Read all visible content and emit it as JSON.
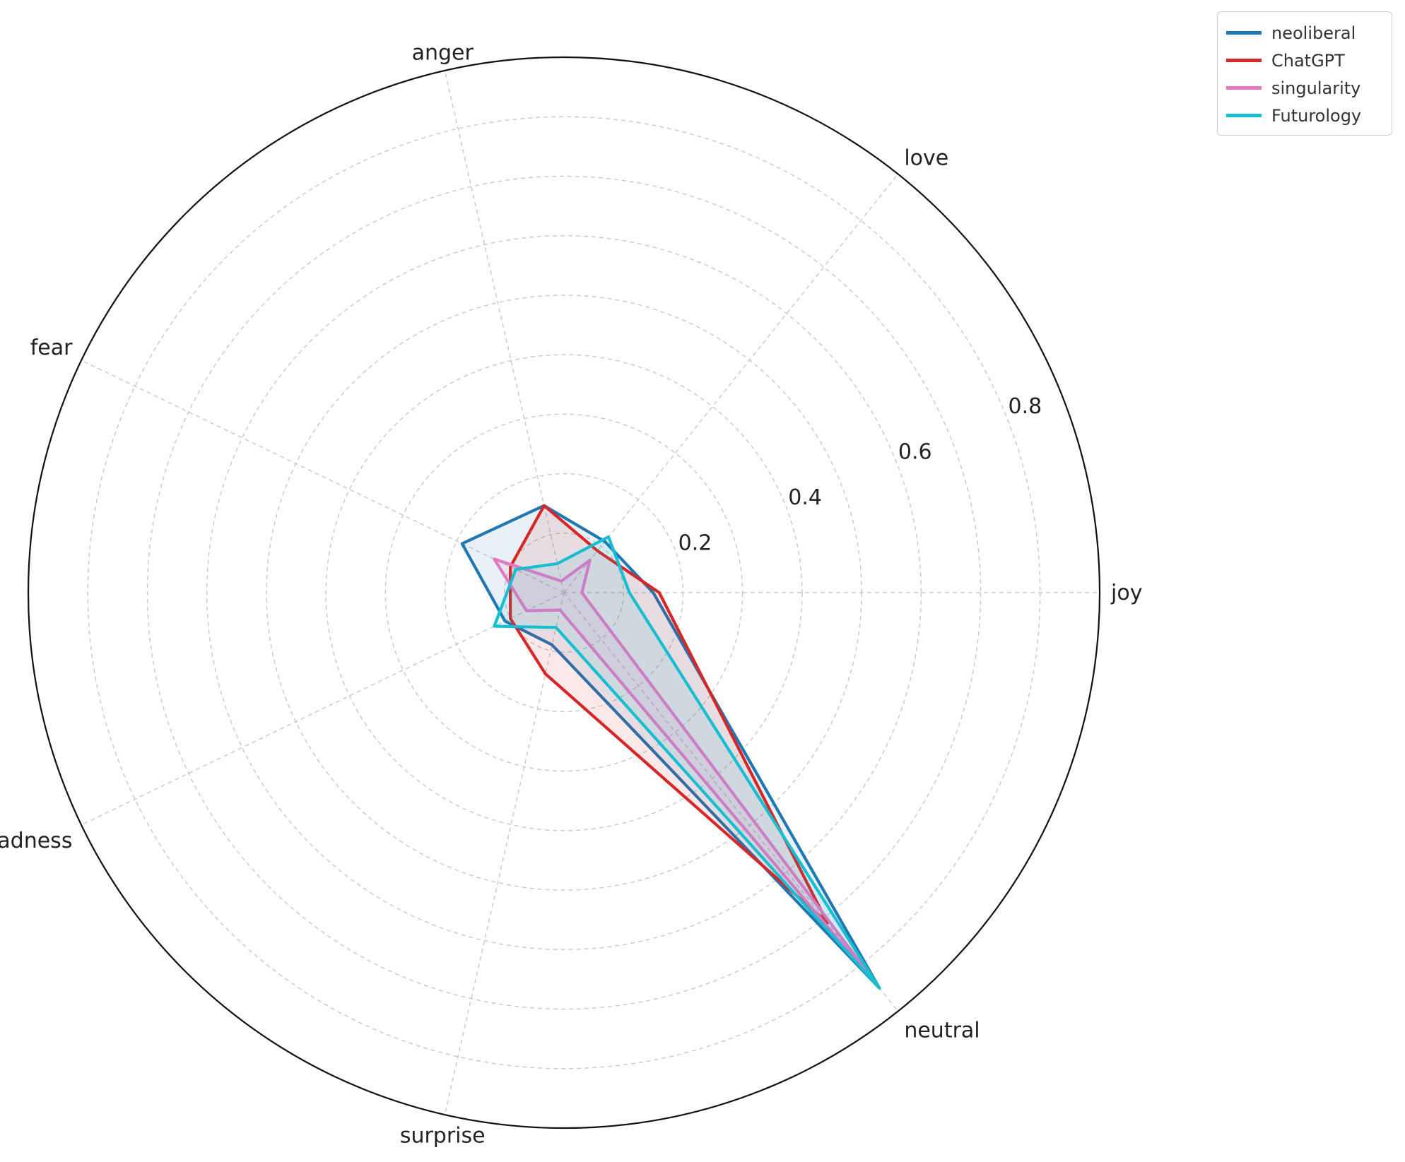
{
  "chart_data": {
    "type": "radar",
    "categories": [
      "joy",
      "love",
      "anger",
      "fear",
      "sadness",
      "surprise",
      "neutral"
    ],
    "rlim": [
      0,
      0.9
    ],
    "rticks": [
      0.2,
      0.4,
      0.6,
      0.8
    ],
    "rtick_labels": [
      "0.2",
      "0.4",
      "0.6",
      "0.8"
    ],
    "grid": true,
    "legend_position": "top-right",
    "series": [
      {
        "name": "neoliberal",
        "color": "#1f77b4",
        "values": [
          0.15,
          0.11,
          0.15,
          0.19,
          0.11,
          0.09,
          0.85
        ]
      },
      {
        "name": "ChatGPT",
        "color": "#d62728",
        "values": [
          0.16,
          0.09,
          0.15,
          0.1,
          0.1,
          0.14,
          0.71
        ]
      },
      {
        "name": "singularity",
        "color": "#e377c2",
        "values": [
          0.03,
          0.07,
          0.02,
          0.13,
          0.07,
          0.03,
          0.85
        ]
      },
      {
        "name": "Futurology",
        "color": "#17becf",
        "values": [
          0.11,
          0.12,
          0.05,
          0.09,
          0.13,
          0.06,
          0.85
        ]
      }
    ]
  }
}
